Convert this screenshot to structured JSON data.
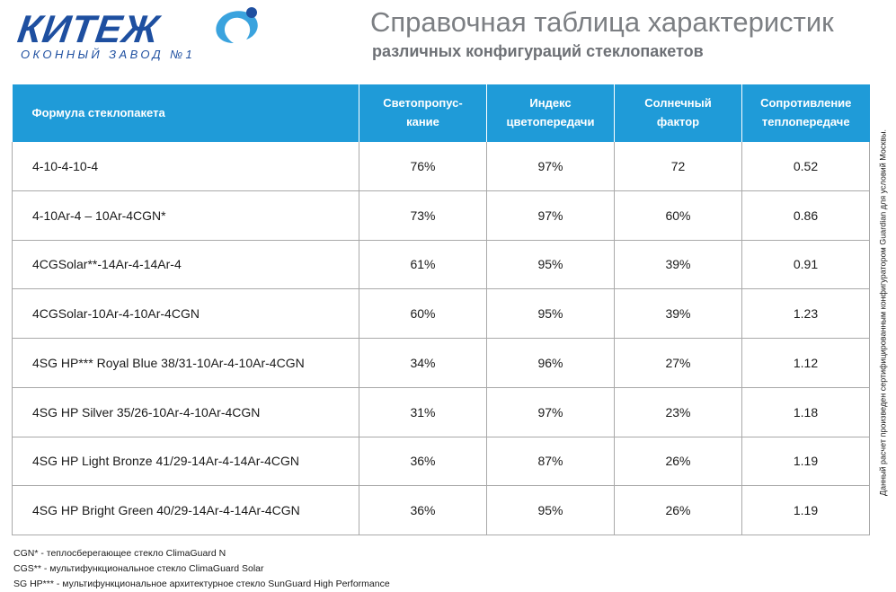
{
  "logo": {
    "brand": "КИТЕЖ",
    "tagline": "ОКОННЫЙ ЗАВОД №1",
    "primary_color": "#1e4fa0",
    "accent_color": "#3aa3de"
  },
  "title": {
    "main": "Справочная таблица характеристик",
    "sub": "различных конфигураций стеклопакетов"
  },
  "table": {
    "header_color": "#1f9bd8",
    "headers": [
      {
        "line1": "Формула стеклопакета",
        "line2": ""
      },
      {
        "line1": "Светопропус-",
        "line2": "кание"
      },
      {
        "line1": "Индекс",
        "line2": "цветопередачи"
      },
      {
        "line1": "Солнечный",
        "line2": "фактор"
      },
      {
        "line1": "Сопротивление",
        "line2": "теплопередаче"
      }
    ],
    "rows": [
      [
        "4-10-4-10-4",
        "76%",
        "97%",
        "72",
        "0.52"
      ],
      [
        "4-10Ar-4 – 10Ar-4CGN*",
        "73%",
        "97%",
        "60%",
        "0.86"
      ],
      [
        "4CGSolar**-14Ar-4-14Ar-4",
        "61%",
        "95%",
        "39%",
        "0.91"
      ],
      [
        "4CGSolar-10Ar-4-10Ar-4CGN",
        "60%",
        "95%",
        "39%",
        "1.23"
      ],
      [
        "4SG HP*** Royal Blue 38/31-10Ar-4-10Ar-4CGN",
        "34%",
        "96%",
        "27%",
        "1.12"
      ],
      [
        "4SG HP Silver 35/26-10Ar-4-10Ar-4CGN",
        "31%",
        "97%",
        "23%",
        "1.18"
      ],
      [
        "4SG HP Light Bronze 41/29-14Ar-4-14Ar-4CGN",
        "36%",
        "87%",
        "26%",
        "1.19"
      ],
      [
        "4SG HP Bright Green 40/29-14Ar-4-14Ar-4CGN",
        "36%",
        "95%",
        "26%",
        "1.19"
      ]
    ]
  },
  "footnotes": [
    "CGN* - теплосберегающее стекло  ClimaGuard N",
    "CGS** - мультифункциональное стекло ClimaGuard Solar",
    "SG HP*** - мультифункциональное архитектурное стекло SunGuard High Performance"
  ],
  "side_note": "Данный расчет произведен сертифицированным конфигуратором Guardian для условий Москвы."
}
